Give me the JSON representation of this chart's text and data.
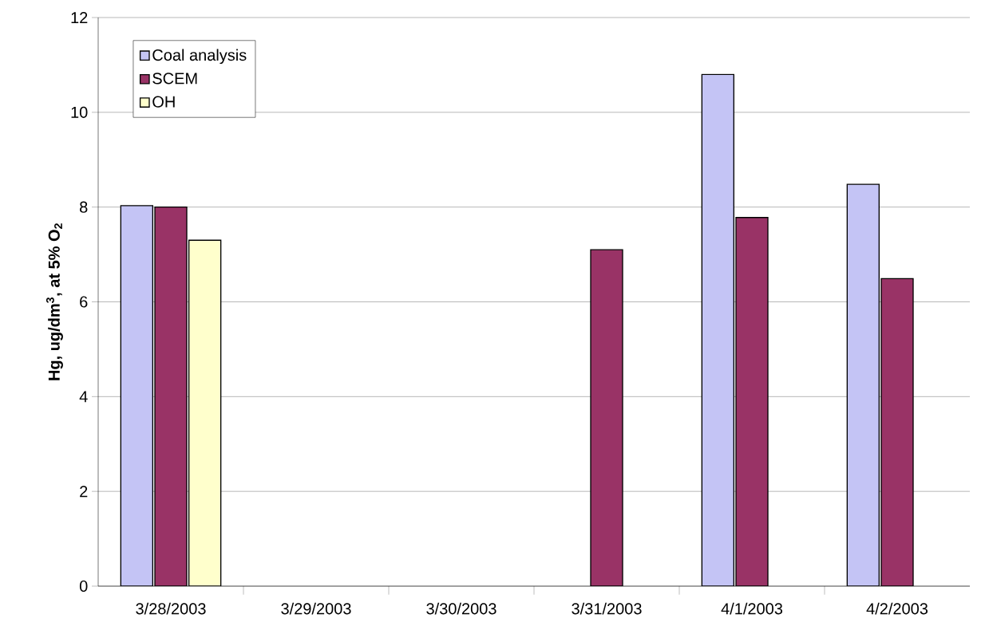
{
  "chart_data": {
    "type": "bar",
    "ylabel": "Hg, ug/dm$^{3}$, at 5% O$_{2}$",
    "categories": [
      "3/28/2003",
      "3/29/2003",
      "3/30/2003",
      "3/31/2003",
      "4/1/2003",
      "4/2/2003"
    ],
    "series": [
      {
        "name": "Coal analysis",
        "color": "#c4c4f5",
        "values": [
          8.03,
          null,
          null,
          null,
          10.8,
          8.48
        ]
      },
      {
        "name": "SCEM",
        "color": "#993366",
        "values": [
          8.0,
          null,
          null,
          7.1,
          7.78,
          6.49
        ]
      },
      {
        "name": "OH",
        "color": "#ffffcc",
        "values": [
          7.3,
          null,
          null,
          null,
          null,
          null
        ]
      }
    ],
    "ylim": [
      0,
      12
    ],
    "yticks": [
      0,
      2,
      4,
      6,
      8,
      10,
      12
    ],
    "grid": "y",
    "legend": "top left"
  }
}
